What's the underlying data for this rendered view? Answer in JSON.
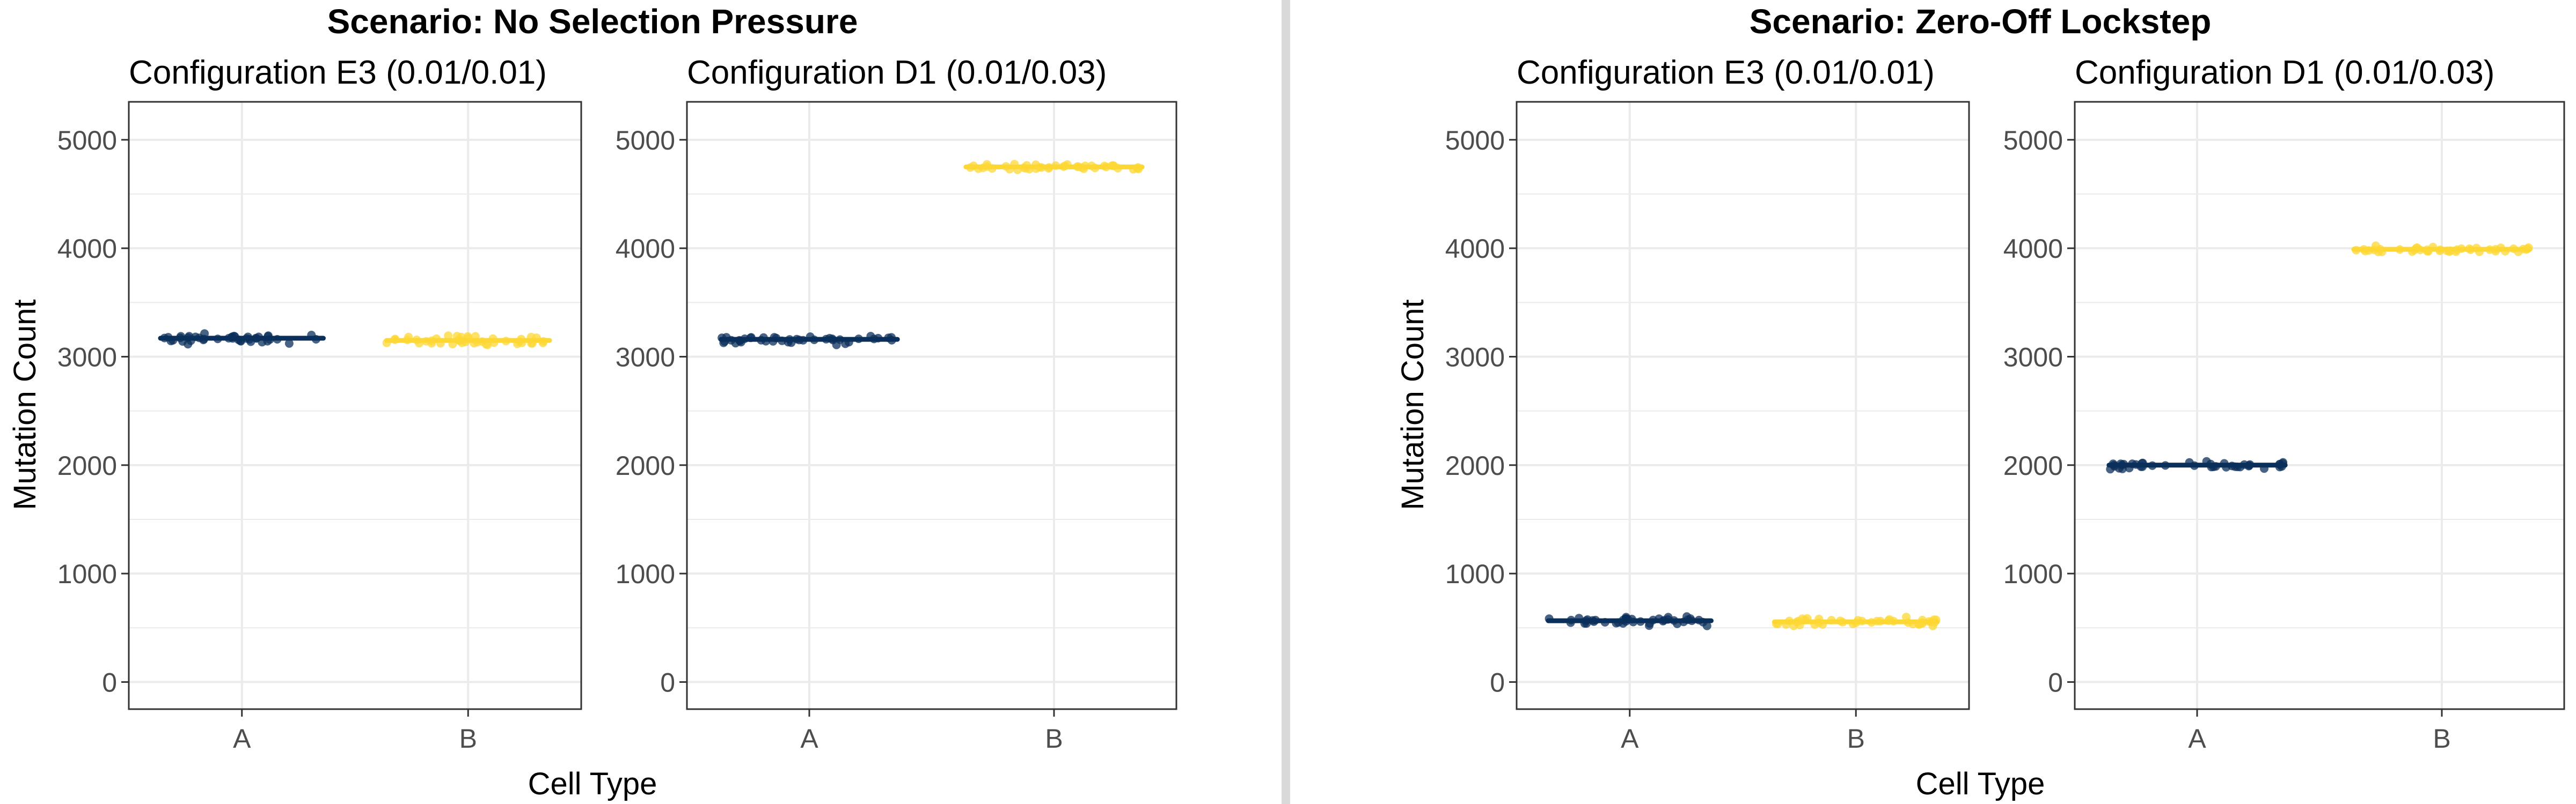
{
  "figure": {
    "y_axis_label": "Mutation Count",
    "x_axis_label": "Cell Type",
    "colors": {
      "A": "#0b2f5b",
      "B": "#fdd835",
      "divider": "#d9d9d9",
      "grid": "#ebebeb",
      "panel_border": "#333333"
    }
  },
  "chart_data": [
    {
      "type": "scatter",
      "scenario": "Scenario: No Selection Pressure",
      "title": "Configuration E3 (0.01/0.01)",
      "xlabel": "Cell Type",
      "ylabel": "Mutation Count",
      "categories": [
        "A",
        "B"
      ],
      "ylim": [
        -250,
        5350
      ],
      "yticks": [
        0,
        1000,
        2000,
        3000,
        4000,
        5000
      ],
      "grid": true,
      "series": [
        {
          "category": "A",
          "color": "#0b2f5b",
          "mean": 3170,
          "spread": 40
        },
        {
          "category": "B",
          "color": "#fdd835",
          "mean": 3150,
          "spread": 40
        }
      ]
    },
    {
      "type": "scatter",
      "scenario": "Scenario: No Selection Pressure",
      "title": "Configuration D1 (0.01/0.03)",
      "xlabel": "Cell Type",
      "ylabel": "",
      "categories": [
        "A",
        "B"
      ],
      "ylim": [
        -250,
        5350
      ],
      "yticks": [
        0,
        1000,
        2000,
        3000,
        4000,
        5000
      ],
      "grid": true,
      "series": [
        {
          "category": "A",
          "color": "#0b2f5b",
          "mean": 3160,
          "spread": 40
        },
        {
          "category": "B",
          "color": "#fdd835",
          "mean": 4750,
          "spread": 25
        }
      ]
    },
    {
      "type": "scatter",
      "scenario": "Scenario: Zero-Off Lockstep",
      "title": "Configuration E3 (0.01/0.01)",
      "xlabel": "Cell Type",
      "ylabel": "Mutation Count",
      "categories": [
        "A",
        "B"
      ],
      "ylim": [
        -250,
        5350
      ],
      "yticks": [
        0,
        1000,
        2000,
        3000,
        4000,
        5000
      ],
      "grid": true,
      "series": [
        {
          "category": "A",
          "color": "#0b2f5b",
          "mean": 565,
          "spread": 40
        },
        {
          "category": "B",
          "color": "#fdd835",
          "mean": 555,
          "spread": 40
        }
      ]
    },
    {
      "type": "scatter",
      "scenario": "Scenario: Zero-Off Lockstep",
      "title": "Configuration D1 (0.01/0.03)",
      "xlabel": "Cell Type",
      "ylabel": "",
      "categories": [
        "A",
        "B"
      ],
      "ylim": [
        -250,
        5350
      ],
      "yticks": [
        0,
        1000,
        2000,
        3000,
        4000,
        5000
      ],
      "grid": true,
      "series": [
        {
          "category": "A",
          "color": "#0b2f5b",
          "mean": 2000,
          "spread": 30
        },
        {
          "category": "B",
          "color": "#fdd835",
          "mean": 3990,
          "spread": 30
        }
      ]
    }
  ]
}
